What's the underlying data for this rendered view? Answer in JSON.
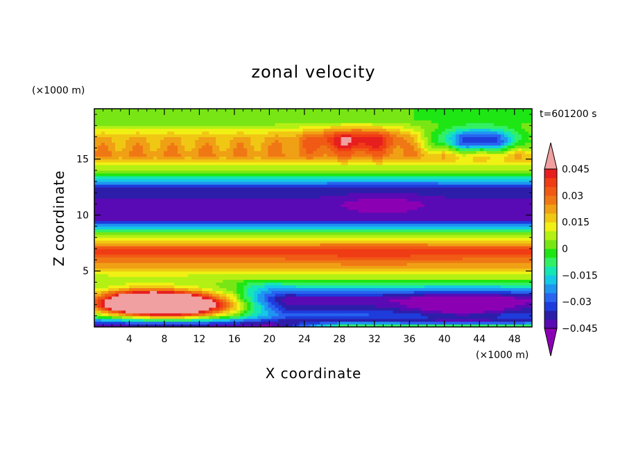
{
  "chart_data": {
    "type": "heatmap",
    "title": "zonal velocity",
    "xlabel": "X coordinate",
    "ylabel": "Z coordinate",
    "x_unit": "(×1000 m)",
    "y_unit": "(×1000 m)",
    "time_label": "t=601200 s",
    "xlim": [
      0,
      50
    ],
    "ylim": [
      0,
      19.5
    ],
    "x_ticks": [
      4,
      8,
      12,
      16,
      20,
      24,
      28,
      32,
      36,
      40,
      44,
      48
    ],
    "y_ticks": [
      5,
      10,
      15
    ],
    "x_tick_labels": [
      "4",
      "8",
      "12",
      "16",
      "20",
      "24",
      "28",
      "32",
      "36",
      "40",
      "44",
      "48"
    ],
    "y_tick_labels": [
      "5",
      "10",
      "15"
    ],
    "colorbar": {
      "min": -0.05,
      "max": 0.05,
      "interval": 0.005,
      "tick_values": [
        0.045,
        0.03,
        0.015,
        0,
        -0.015,
        -0.03,
        -0.045
      ],
      "tick_labels": [
        "0.045",
        "0.03",
        "0.015",
        "0",
        "−0.015",
        "−0.03",
        "−0.045"
      ],
      "colors": [
        "#8c00b4",
        "#5a0ab4",
        "#2d1eaa",
        "#1e3cdc",
        "#2864f0",
        "#1e96f0",
        "#14c8e6",
        "#14e6b4",
        "#32f064",
        "#1ee614",
        "#78e614",
        "#b4f014",
        "#f0f014",
        "#f0c814",
        "#f0a014",
        "#f07814",
        "#f05a14",
        "#f03c14",
        "#e61e1e",
        "#f0a0a0"
      ]
    },
    "field_description_values": {
      "layers": [
        {
          "z": 18.5,
          "u": 0.0
        },
        {
          "z": 16.9,
          "u": 0.02
        },
        {
          "z": 15.3,
          "u": 0.025
        },
        {
          "z": 13.8,
          "u": 0.0
        },
        {
          "z": 12.5,
          "u": -0.035
        },
        {
          "z": 11.0,
          "u": -0.042
        },
        {
          "z": 9.6,
          "u": -0.04
        },
        {
          "z": 8.4,
          "u": 0.0
        },
        {
          "z": 6.8,
          "u": 0.038
        },
        {
          "z": 5.3,
          "u": 0.02
        },
        {
          "z": 4.0,
          "u": 0.0
        },
        {
          "z": 2.5,
          "u": -0.03
        },
        {
          "z": 1.0,
          "u": -0.02
        },
        {
          "z": 0.2,
          "u": -0.045
        }
      ],
      "features": [
        {
          "x": 5,
          "z": 2.2,
          "u": 0.05
        },
        {
          "x": 10,
          "z": 2.0,
          "u": 0.05
        },
        {
          "x": 42,
          "z": 2.0,
          "u": -0.05
        },
        {
          "x": 33,
          "z": 11.0,
          "u": -0.05
        },
        {
          "x": 44,
          "z": 16.7,
          "u": -0.045
        },
        {
          "x": 30,
          "z": 16.8,
          "u": 0.05
        },
        {
          "x": 32,
          "z": 6.6,
          "u": 0.04
        }
      ]
    }
  }
}
